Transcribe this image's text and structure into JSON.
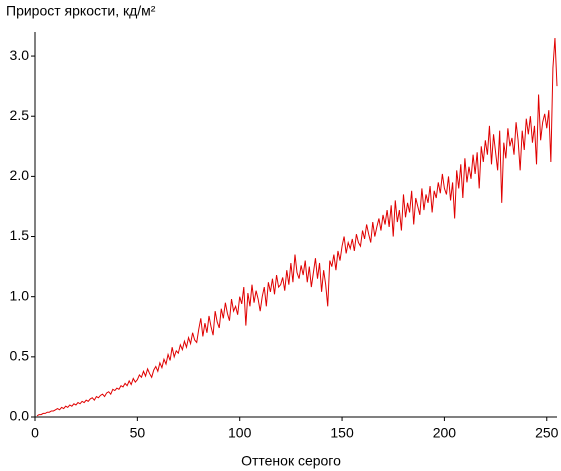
{
  "chart_data": {
    "type": "line",
    "title": "Прирост яркости, кд/м²",
    "x_label": "Оттенок серого",
    "xlim": [
      0,
      255
    ],
    "xticks": [
      0,
      50,
      100,
      150,
      200,
      250
    ],
    "ylim": [
      0,
      3.2
    ],
    "yticks": [
      {
        "value": 0,
        "label": "0.0"
      },
      0.5,
      {
        "value": 1,
        "label": "1.0"
      },
      1.5,
      {
        "value": 2,
        "label": "2.0"
      },
      2.5,
      {
        "value": 3,
        "label": "3.0"
      }
    ],
    "grid": false,
    "x": [
      1,
      2,
      3,
      4,
      5,
      6,
      7,
      8,
      9,
      10,
      11,
      12,
      13,
      14,
      15,
      16,
      17,
      18,
      19,
      20,
      21,
      22,
      23,
      24,
      25,
      26,
      27,
      28,
      29,
      30,
      31,
      32,
      33,
      34,
      35,
      36,
      37,
      38,
      39,
      40,
      41,
      42,
      43,
      44,
      45,
      46,
      47,
      48,
      49,
      50,
      51,
      52,
      53,
      54,
      55,
      56,
      57,
      58,
      59,
      60,
      61,
      62,
      63,
      64,
      65,
      66,
      67,
      68,
      69,
      70,
      71,
      72,
      73,
      74,
      75,
      76,
      77,
      78,
      79,
      80,
      81,
      82,
      83,
      84,
      85,
      86,
      87,
      88,
      89,
      90,
      91,
      92,
      93,
      94,
      95,
      96,
      97,
      98,
      99,
      100,
      101,
      102,
      103,
      104,
      105,
      106,
      107,
      108,
      109,
      110,
      111,
      112,
      113,
      114,
      115,
      116,
      117,
      118,
      119,
      120,
      121,
      122,
      123,
      124,
      125,
      126,
      127,
      128,
      129,
      130,
      131,
      132,
      133,
      134,
      135,
      136,
      137,
      138,
      139,
      140,
      141,
      142,
      143,
      144,
      145,
      146,
      147,
      148,
      149,
      150,
      151,
      152,
      153,
      154,
      155,
      156,
      157,
      158,
      159,
      160,
      161,
      162,
      163,
      164,
      165,
      166,
      167,
      168,
      169,
      170,
      171,
      172,
      173,
      174,
      175,
      176,
      177,
      178,
      179,
      180,
      181,
      182,
      183,
      184,
      185,
      186,
      187,
      188,
      189,
      190,
      191,
      192,
      193,
      194,
      195,
      196,
      197,
      198,
      199,
      200,
      201,
      202,
      203,
      204,
      205,
      206,
      207,
      208,
      209,
      210,
      211,
      212,
      213,
      214,
      215,
      216,
      217,
      218,
      219,
      220,
      221,
      222,
      223,
      224,
      225,
      226,
      227,
      228,
      229,
      230,
      231,
      232,
      233,
      234,
      235,
      236,
      237,
      238,
      239,
      240,
      241,
      242,
      243,
      244,
      245,
      246,
      247,
      248,
      249,
      250,
      251,
      252,
      253,
      254,
      255
    ],
    "series": [
      {
        "color": "#e00000",
        "values": [
          0.01,
          0.02,
          0.02,
          0.03,
          0.03,
          0.04,
          0.04,
          0.05,
          0.05,
          0.06,
          0.07,
          0.06,
          0.08,
          0.07,
          0.09,
          0.08,
          0.1,
          0.09,
          0.11,
          0.1,
          0.12,
          0.11,
          0.13,
          0.12,
          0.14,
          0.13,
          0.15,
          0.16,
          0.14,
          0.17,
          0.16,
          0.18,
          0.19,
          0.17,
          0.2,
          0.21,
          0.19,
          0.23,
          0.22,
          0.24,
          0.23,
          0.26,
          0.25,
          0.28,
          0.26,
          0.3,
          0.27,
          0.32,
          0.29,
          0.31,
          0.35,
          0.33,
          0.38,
          0.34,
          0.4,
          0.36,
          0.33,
          0.39,
          0.42,
          0.38,
          0.45,
          0.41,
          0.48,
          0.44,
          0.52,
          0.47,
          0.58,
          0.5,
          0.55,
          0.53,
          0.6,
          0.56,
          0.63,
          0.58,
          0.66,
          0.61,
          0.7,
          0.64,
          0.62,
          0.73,
          0.82,
          0.67,
          0.78,
          0.7,
          0.84,
          0.75,
          0.68,
          0.88,
          0.79,
          0.74,
          0.9,
          0.82,
          0.95,
          0.86,
          0.8,
          0.98,
          0.88,
          0.92,
          0.85,
          1.0,
          0.94,
          1.08,
          0.76,
          1.03,
          0.92,
          1.1,
          0.95,
          1.05,
          0.98,
          0.88,
          1.0,
          1.08,
          0.92,
          1.12,
          1.04,
          1.15,
          1.02,
          1.18,
          1.08,
          1.1,
          1.16,
          1.05,
          1.22,
          1.1,
          1.28,
          1.12,
          1.35,
          1.2,
          1.15,
          1.26,
          1.18,
          1.3,
          1.12,
          1.25,
          1.08,
          1.2,
          1.32,
          1.15,
          1.28,
          1.04,
          1.22,
          1.1,
          0.92,
          1.3,
          1.25,
          1.35,
          1.22,
          1.38,
          1.3,
          1.42,
          1.5,
          1.36,
          1.45,
          1.4,
          1.48,
          1.38,
          1.52,
          1.45,
          1.42,
          1.55,
          1.48,
          1.6,
          1.52,
          1.45,
          1.62,
          1.5,
          1.58,
          1.65,
          1.55,
          1.68,
          1.6,
          1.72,
          1.58,
          1.76,
          1.5,
          1.8,
          1.62,
          1.72,
          1.55,
          1.85,
          1.66,
          1.78,
          1.7,
          1.88,
          1.6,
          1.82,
          1.75,
          1.68,
          1.9,
          1.72,
          1.85,
          1.78,
          1.92,
          1.7,
          1.88,
          1.82,
          1.95,
          1.86,
          2.02,
          1.9,
          1.85,
          2.0,
          1.8,
          1.95,
          1.65,
          2.05,
          1.9,
          2.1,
          1.82,
          2.15,
          1.95,
          2.08,
          1.98,
          2.18,
          2.02,
          2.2,
          1.9,
          2.25,
          2.12,
          2.3,
          2.18,
          2.42,
          2.1,
          2.35,
          2.2,
          2.05,
          2.38,
          1.78,
          2.28,
          2.15,
          2.4,
          2.25,
          2.32,
          2.18,
          2.45,
          2.3,
          2.05,
          2.38,
          2.22,
          2.48,
          2.35,
          2.5,
          2.28,
          2.42,
          2.1,
          2.68,
          2.3,
          2.45,
          2.52,
          2.4,
          2.55,
          2.12,
          2.9,
          3.15,
          2.75
        ]
      }
    ]
  }
}
